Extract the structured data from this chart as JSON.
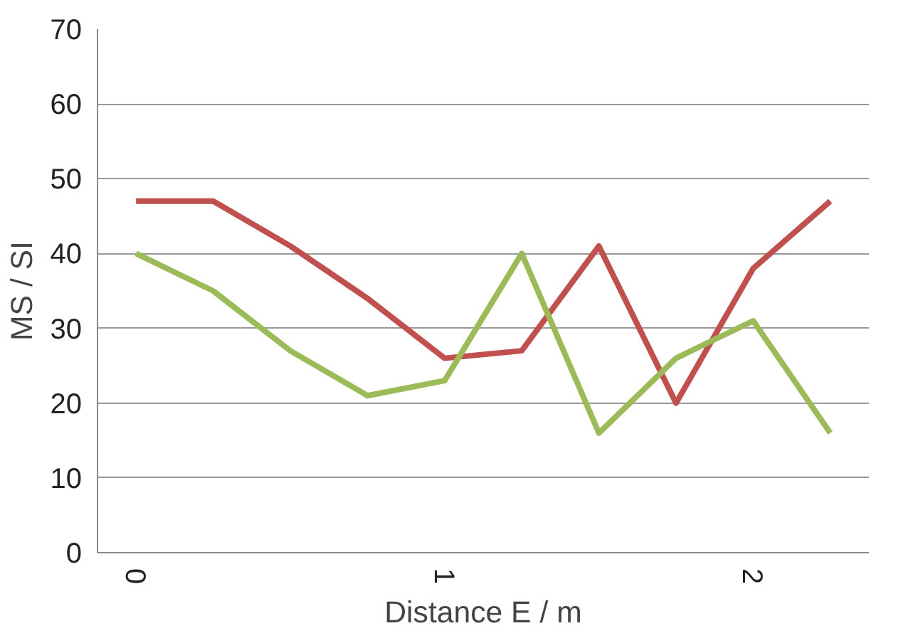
{
  "chart_data": {
    "type": "line",
    "xlabel": "Distance E / m",
    "ylabel": "MS / SI",
    "categories": [
      "0",
      null,
      null,
      null,
      "1",
      null,
      null,
      null,
      "2",
      null
    ],
    "series": [
      {
        "color": "#c0504d",
        "values": [
          47,
          47,
          41,
          34,
          26,
          27,
          41,
          20,
          38,
          47
        ]
      },
      {
        "color": "#9bbb59",
        "values": [
          40,
          35,
          27,
          21,
          23,
          40,
          16,
          26,
          31,
          16
        ]
      }
    ],
    "ylim": [
      0,
      70
    ],
    "yticks": [
      0,
      10,
      20,
      30,
      40,
      50,
      60,
      70
    ],
    "grid": "y",
    "marker": "none",
    "line_style": "solid"
  }
}
